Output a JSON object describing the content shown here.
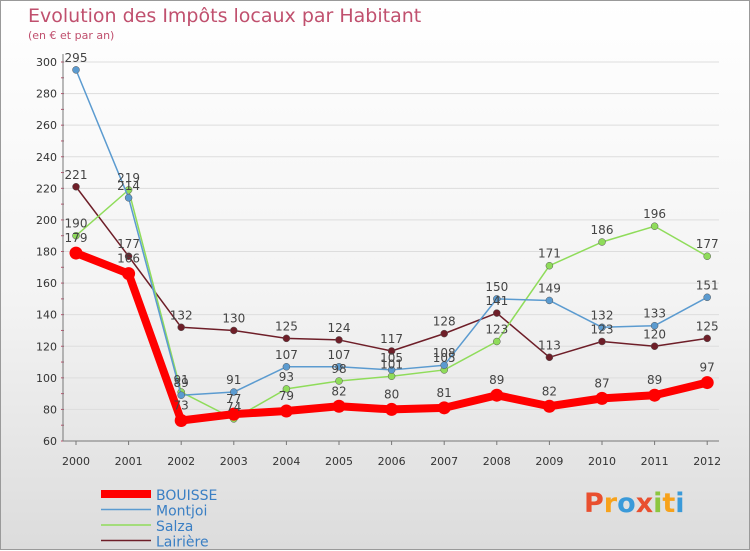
{
  "chart_data": {
    "type": "line",
    "title": "Evolution des Impôts locaux par Habitant",
    "subtitle": "(en € et par an)",
    "xlabel": "",
    "ylabel": "",
    "ylim": [
      60,
      300
    ],
    "yticks": [
      60,
      80,
      100,
      120,
      140,
      160,
      180,
      200,
      220,
      240,
      260,
      280,
      300
    ],
    "categories": [
      "2000",
      "2001",
      "2002",
      "2003",
      "2004",
      "2005",
      "2006",
      "2007",
      "2008",
      "2009",
      "2010",
      "2011",
      "2012"
    ],
    "grid": "horizontal",
    "legend_position": "bottom-left",
    "series": [
      {
        "name": "Lairière",
        "color": "#6e1e28",
        "values": [
          221,
          177,
          132,
          130,
          125,
          124,
          117,
          128,
          141,
          113,
          123,
          120,
          125
        ]
      },
      {
        "name": "Salza",
        "color": "#8fdc5a",
        "values": [
          190,
          219,
          91,
          74,
          93,
          98,
          101,
          105,
          123,
          171,
          186,
          196,
          177
        ]
      },
      {
        "name": "Montjoi",
        "color": "#5b9bd0",
        "values": [
          295,
          214,
          89,
          91,
          107,
          107,
          105,
          108,
          150,
          149,
          132,
          133,
          151
        ]
      },
      {
        "name": "BOUISSE",
        "color": "#ff0000",
        "values": [
          179,
          166,
          73,
          77,
          79,
          82,
          80,
          81,
          89,
          82,
          87,
          89,
          97
        ]
      }
    ],
    "legend_order": [
      "BOUISSE",
      "Montjoi",
      "Salza",
      "Lairière"
    ]
  }
}
